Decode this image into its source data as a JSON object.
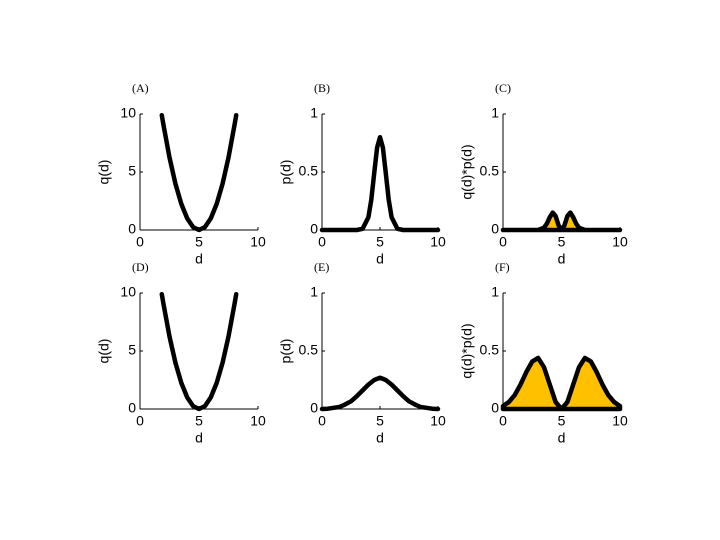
{
  "chart_data": [
    {
      "type": "line",
      "label": "(A)",
      "x_label": "d",
      "y_label": "q(d)",
      "color": "#000000",
      "x": [
        1.85,
        2,
        2.5,
        3,
        3.5,
        4,
        4.5,
        5,
        5.5,
        6,
        6.5,
        7,
        7.5,
        8,
        8.15
      ],
      "values": [
        9.9,
        9,
        6.25,
        4,
        2.25,
        1,
        0.25,
        0,
        0.25,
        1,
        2.25,
        4,
        6.25,
        9,
        9.9
      ],
      "xlim": [
        0,
        10
      ],
      "ylim": [
        0,
        10
      ],
      "xticks": [
        0,
        5,
        10
      ],
      "yticks": [
        0,
        5,
        10
      ]
    },
    {
      "type": "line",
      "label": "(B)",
      "x_label": "d",
      "y_label": "p(d)",
      "color": "#000000",
      "x": [
        0,
        1,
        2,
        3,
        3.5,
        4,
        4.25,
        4.5,
        4.75,
        5,
        5.25,
        5.5,
        5.75,
        6,
        6.5,
        7,
        8,
        9,
        10
      ],
      "values": [
        0,
        0,
        0,
        0,
        0.01,
        0.11,
        0.26,
        0.49,
        0.71,
        0.8,
        0.71,
        0.49,
        0.26,
        0.11,
        0.01,
        0,
        0,
        0,
        0
      ],
      "xlim": [
        0,
        10
      ],
      "ylim": [
        0,
        1
      ],
      "xticks": [
        0,
        5,
        10
      ],
      "yticks": [
        0,
        0.5,
        1
      ]
    },
    {
      "type": "area",
      "label": "(C)",
      "x_label": "d",
      "y_label": "q(d)*p(d)",
      "color": "#000000",
      "fill": "#ffc000",
      "x": [
        0,
        3,
        3.5,
        3.75,
        4,
        4.25,
        4.5,
        4.75,
        5,
        5.25,
        5.5,
        5.75,
        6,
        6.25,
        6.5,
        7,
        10
      ],
      "values": [
        0,
        0,
        0.02,
        0.055,
        0.11,
        0.15,
        0.12,
        0.04,
        0,
        0.04,
        0.12,
        0.15,
        0.11,
        0.055,
        0.02,
        0,
        0
      ],
      "xlim": [
        0,
        10
      ],
      "ylim": [
        0,
        1
      ],
      "xticks": [
        0,
        5,
        10
      ],
      "yticks": [
        0,
        0.5,
        1
      ]
    },
    {
      "type": "line",
      "label": "(D)",
      "x_label": "d",
      "y_label": "q(d)",
      "color": "#000000",
      "x": [
        1.85,
        2,
        2.5,
        3,
        3.5,
        4,
        4.5,
        5,
        5.5,
        6,
        6.5,
        7,
        7.5,
        8,
        8.15
      ],
      "values": [
        9.9,
        9,
        6.25,
        4,
        2.25,
        1,
        0.25,
        0,
        0.25,
        1,
        2.25,
        4,
        6.25,
        9,
        9.9
      ],
      "xlim": [
        0,
        10
      ],
      "ylim": [
        0,
        10
      ],
      "xticks": [
        0,
        5,
        10
      ],
      "yticks": [
        0,
        5,
        10
      ]
    },
    {
      "type": "line",
      "label": "(E)",
      "x_label": "d",
      "y_label": "p(d)",
      "color": "#000000",
      "x": [
        0,
        0.5,
        1,
        1.5,
        2,
        2.5,
        3,
        3.5,
        4,
        4.5,
        5,
        5.5,
        6,
        6.5,
        7,
        7.5,
        8,
        8.5,
        9,
        9.5,
        10
      ],
      "values": [
        0,
        0.003,
        0.01,
        0.017,
        0.04,
        0.066,
        0.11,
        0.16,
        0.21,
        0.25,
        0.27,
        0.25,
        0.21,
        0.16,
        0.11,
        0.066,
        0.04,
        0.017,
        0.01,
        0.003,
        0
      ],
      "xlim": [
        0,
        10
      ],
      "ylim": [
        0,
        1
      ],
      "xticks": [
        0,
        5,
        10
      ],
      "yticks": [
        0,
        0.5,
        1
      ]
    },
    {
      "type": "area",
      "label": "(F)",
      "x_label": "d",
      "y_label": "q(d)*p(d)",
      "color": "#000000",
      "fill": "#ffc000",
      "x": [
        0,
        0.5,
        1,
        1.5,
        2,
        2.5,
        3,
        3.5,
        4,
        4.5,
        5,
        5.5,
        6,
        6.5,
        7,
        7.5,
        8,
        8.5,
        9,
        9.5,
        10
      ],
      "values": [
        0.025,
        0.06,
        0.12,
        0.21,
        0.32,
        0.41,
        0.44,
        0.36,
        0.21,
        0.06,
        0,
        0.06,
        0.21,
        0.36,
        0.44,
        0.41,
        0.32,
        0.21,
        0.12,
        0.06,
        0.025
      ],
      "xlim": [
        0,
        10
      ],
      "ylim": [
        0,
        1
      ],
      "xticks": [
        0,
        5,
        10
      ],
      "yticks": [
        0,
        0.5,
        1
      ]
    }
  ]
}
